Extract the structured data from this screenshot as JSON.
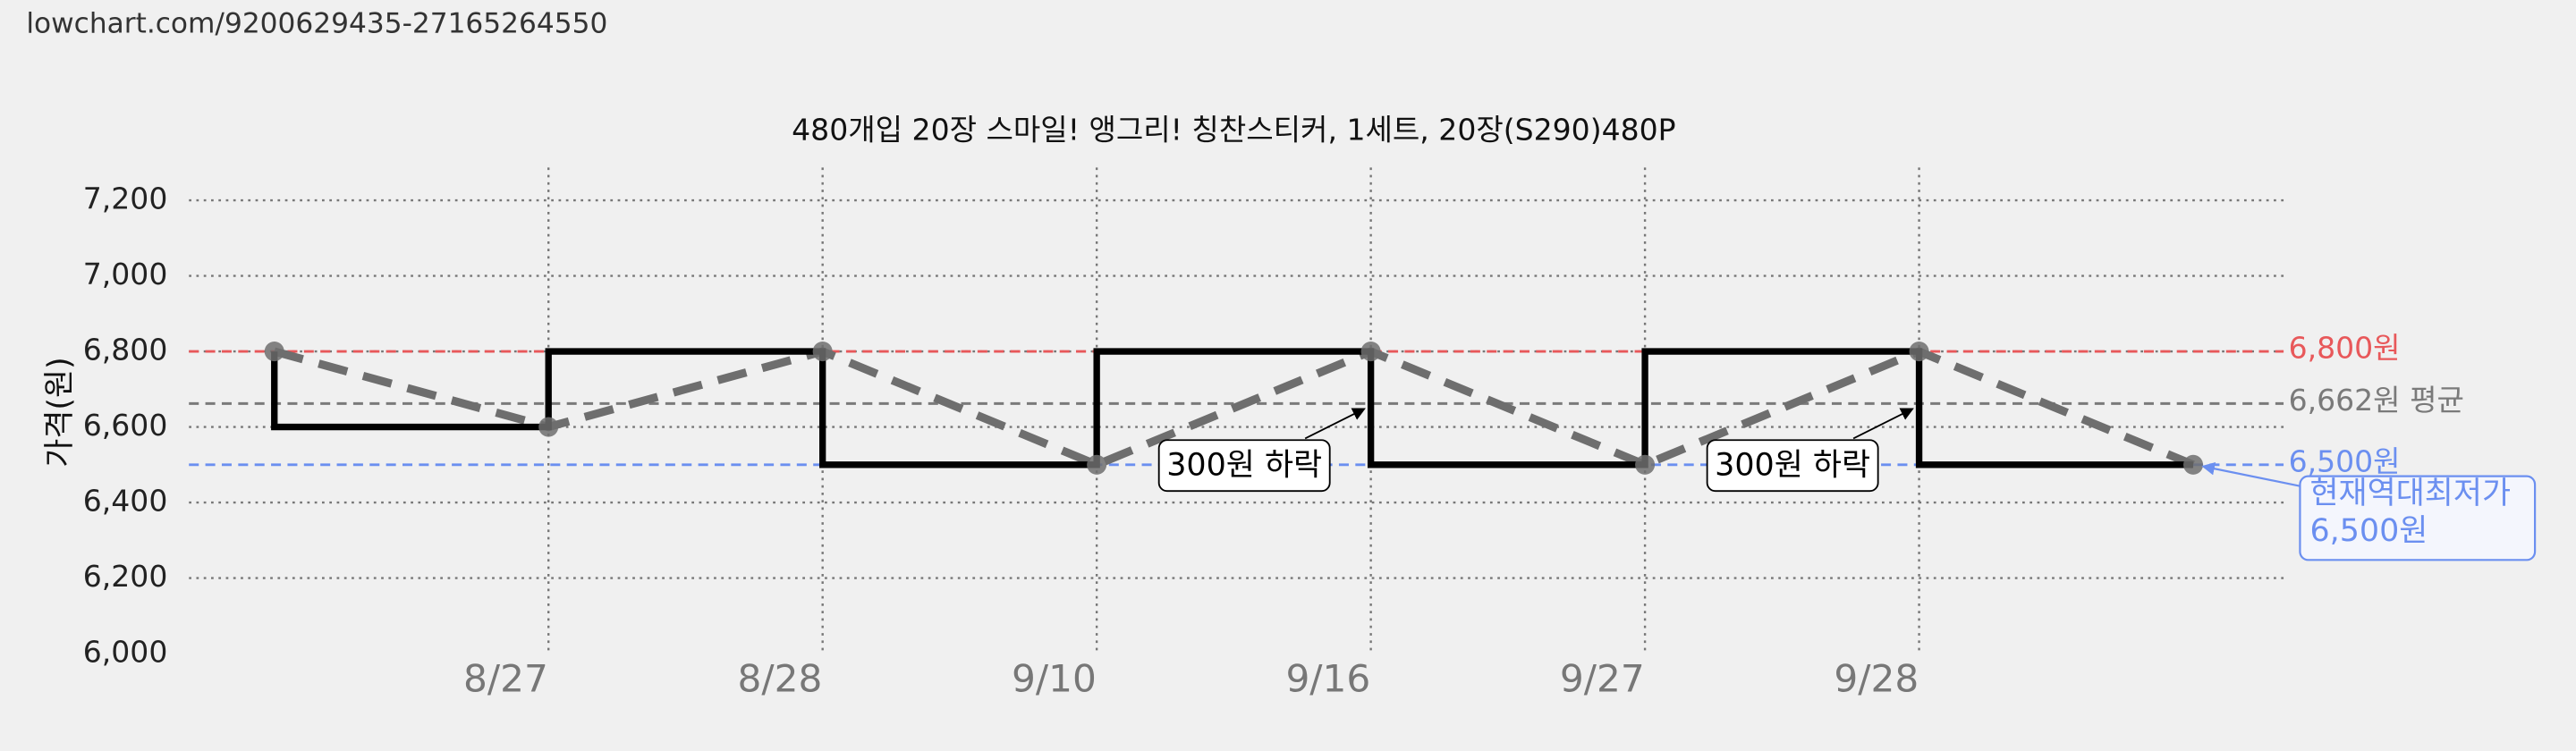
{
  "url": "lowchart.com/9200629435-27165264550",
  "chart_data": {
    "type": "step",
    "title": "480개입 20장 스마일! 앵그리! 칭찬스티커, 1세트, 20장(S290)480P",
    "y_label": "가격(원)",
    "categories": [
      null,
      "8/27",
      "8/28",
      "9/10",
      "9/16",
      "9/27",
      "9/28",
      null
    ],
    "series": [
      {
        "color": "#000000",
        "values": [
          6800,
          6600,
          6800,
          6500,
          6800,
          6500,
          6800,
          6500
        ]
      }
    ],
    "trend_color": "#6e6e6e",
    "ylim": [
      6000,
      7200
    ],
    "yticks": [
      {
        "value": 6000,
        "label": "6,000"
      },
      {
        "value": 6200,
        "label": "6,200"
      },
      {
        "value": 6400,
        "label": "6,400"
      },
      {
        "value": 6600,
        "label": "6,600"
      },
      {
        "value": 6800,
        "label": "6,800"
      },
      {
        "value": 7000,
        "label": "7,000"
      },
      {
        "value": 7200,
        "label": "7,200"
      }
    ],
    "grid": true,
    "reference_lines": [
      {
        "value": 6800,
        "label": "6,800원",
        "color": "#e8585a"
      },
      {
        "value": 6662,
        "label": "6,662원 평균",
        "color": "#7a7a7a"
      },
      {
        "value": 6500,
        "label": "6,500원",
        "color": "#6b8ff0"
      }
    ],
    "annotations": [
      {
        "text": "300원 하락",
        "at": "9/16"
      },
      {
        "text": "300원 하락",
        "at": "9/28"
      }
    ],
    "callout": {
      "lines": [
        "현재역대최저가",
        "6,500원"
      ],
      "color": "#6b8ff0"
    }
  }
}
